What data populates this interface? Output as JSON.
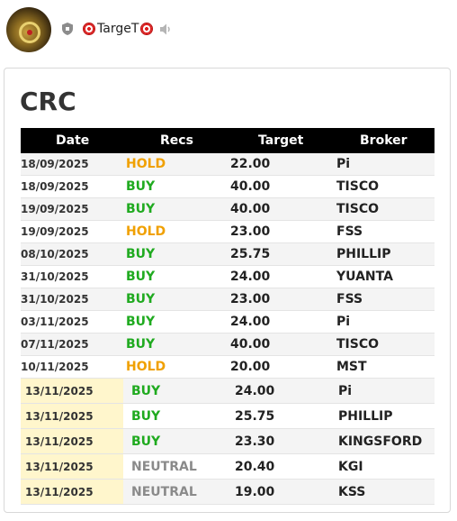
{
  "header": {
    "username": "TargeT",
    "icons": [
      "avatar",
      "shield-icon",
      "target-icon",
      "target-icon",
      "speaker-icon"
    ]
  },
  "card": {
    "title": "CRC",
    "columns": [
      "Date",
      "Recs",
      "Target",
      "Broker"
    ],
    "rows": [
      {
        "date": "18/09/2025",
        "rec": "HOLD",
        "target": "22.00",
        "broker": "Pi"
      },
      {
        "date": "18/09/2025",
        "rec": "BUY",
        "target": "40.00",
        "broker": "TISCO"
      },
      {
        "date": "19/09/2025",
        "rec": "BUY",
        "target": "40.00",
        "broker": "TISCO"
      },
      {
        "date": "19/09/2025",
        "rec": "HOLD",
        "target": "23.00",
        "broker": "FSS"
      },
      {
        "date": "08/10/2025",
        "rec": "BUY",
        "target": "25.75",
        "broker": "PHILLIP"
      },
      {
        "date": "31/10/2025",
        "rec": "BUY",
        "target": "24.00",
        "broker": "YUANTA"
      },
      {
        "date": "31/10/2025",
        "rec": "BUY",
        "target": "23.00",
        "broker": "FSS"
      },
      {
        "date": "03/11/2025",
        "rec": "BUY",
        "target": "24.00",
        "broker": "Pi"
      },
      {
        "date": "07/11/2025",
        "rec": "BUY",
        "target": "40.00",
        "broker": "TISCO"
      },
      {
        "date": "10/11/2025",
        "rec": "HOLD",
        "target": "20.00",
        "broker": "MST"
      },
      {
        "date": "13/11/2025",
        "rec": "BUY",
        "target": "24.00",
        "broker": "Pi"
      },
      {
        "date": "13/11/2025",
        "rec": "BUY",
        "target": "25.75",
        "broker": "PHILLIP"
      },
      {
        "date": "13/11/2025",
        "rec": "BUY",
        "target": "23.30",
        "broker": "KINGSFORD"
      },
      {
        "date": "13/11/2025",
        "rec": "NEUTRAL",
        "target": "20.40",
        "broker": "KGI"
      },
      {
        "date": "13/11/2025",
        "rec": "NEUTRAL",
        "target": "19.00",
        "broker": "KSS"
      }
    ]
  },
  "colors": {
    "buy": "#1faa1f",
    "hold": "#f0a000",
    "neutral": "#8a8a8a",
    "highlight_date_bg": "#fff6cc",
    "header_bg": "#000000"
  }
}
